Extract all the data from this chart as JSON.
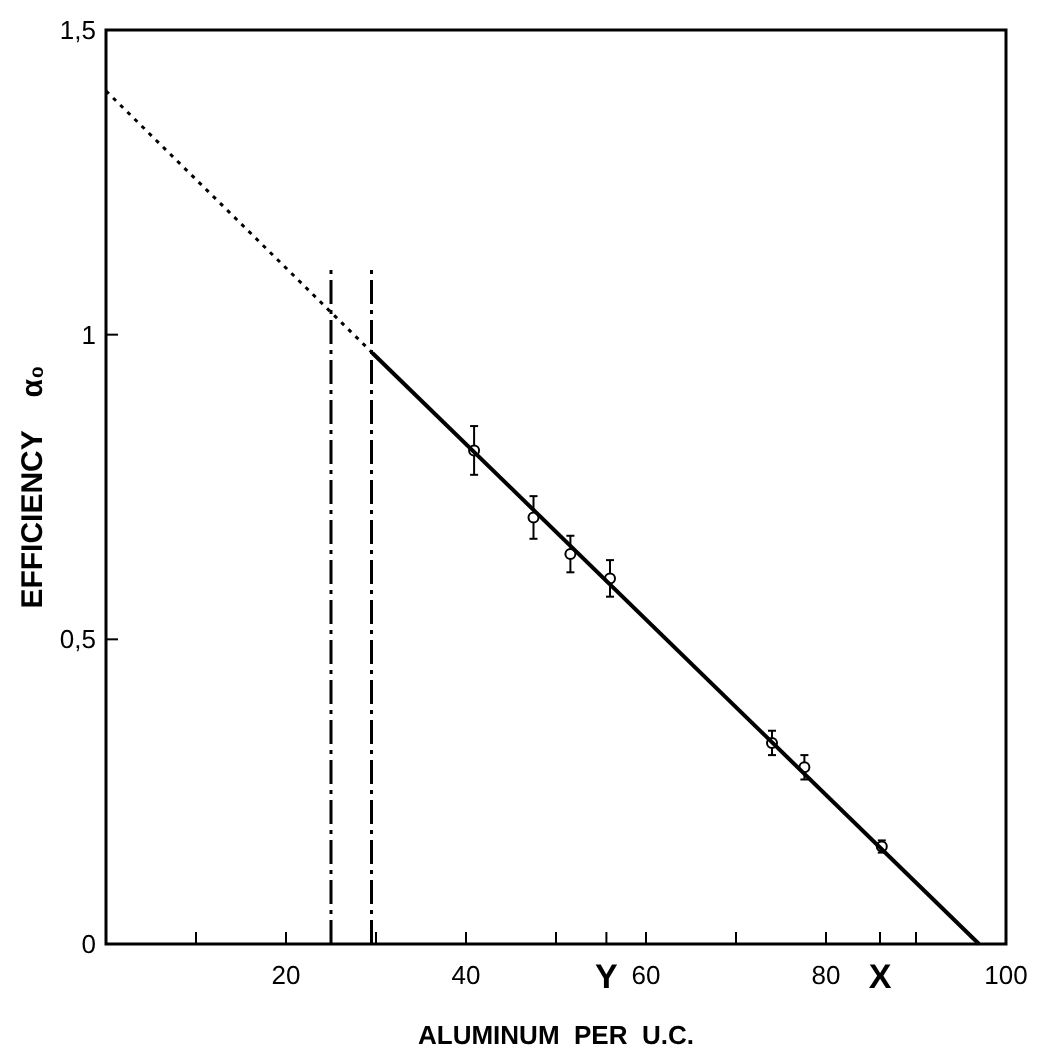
{
  "chart_data": {
    "type": "scatter",
    "xlabel": "ALUMINUM  PER  U.C.",
    "ylabel": "EFFICIENCY    α₀",
    "xlim": [
      0,
      100
    ],
    "ylim": [
      0,
      1.5
    ],
    "xticks": [
      {
        "value": 10,
        "label": null
      },
      20,
      {
        "value": 30,
        "label": null
      },
      40,
      {
        "value": 50,
        "label": null
      },
      {
        "value": 55.6,
        "label": "Y"
      },
      60,
      {
        "value": 70,
        "label": null
      },
      80,
      {
        "value": 86,
        "label": "X"
      },
      {
        "value": 90,
        "label": null
      },
      100
    ],
    "yticks": [
      0,
      {
        "value": 0.5,
        "label": "0,5"
      },
      1,
      {
        "value": 1.5,
        "label": "1,5"
      }
    ],
    "marker": "circle",
    "grid": false,
    "series": [
      {
        "color": "#000000",
        "x": [
          40.9,
          47.5,
          51.6,
          56,
          74,
          77.6,
          86.2
        ],
        "values": [
          0.81,
          0.7,
          0.64,
          0.6,
          0.33,
          0.29,
          0.16
        ],
        "errors": [
          0.04,
          0.035,
          0.03,
          0.03,
          0.02,
          0.02,
          0.01
        ]
      },
      {
        "type": "line",
        "color": "#000000",
        "line_style": "dotted",
        "marker": "none",
        "x": [
          0,
          29.6
        ],
        "values": [
          1.4,
          0.97
        ]
      },
      {
        "type": "line",
        "color": "#000000",
        "line_style": "solid",
        "marker": "none",
        "x": [
          29.6,
          97
        ],
        "values": [
          0.97,
          0
        ]
      },
      {
        "type": "line",
        "color": "#000000",
        "line_style": "dashed",
        "marker": "none",
        "x": [
          25,
          25
        ],
        "values": [
          0,
          1.11
        ]
      },
      {
        "type": "line",
        "color": "#000000",
        "line_style": "dashed",
        "marker": "none",
        "x": [
          29.5,
          29.5
        ],
        "values": [
          0,
          1.11
        ]
      }
    ]
  }
}
